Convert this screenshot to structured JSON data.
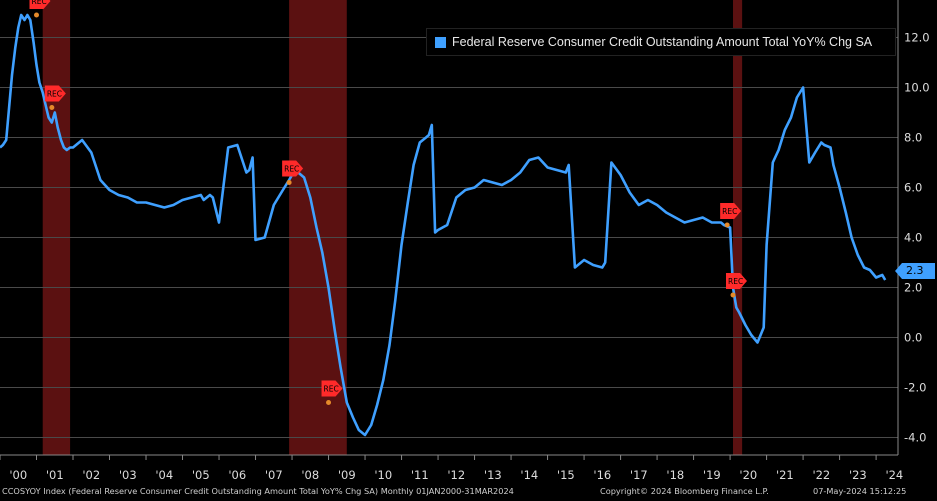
{
  "chart_data": {
    "type": "line",
    "series": [
      {
        "name": "Federal Reserve Consumer Credit Outstanding Amount Total YoY% Chg SA",
        "color": "#3fa0ff",
        "x": [
          2000.0,
          2000.08,
          2000.17,
          2000.25,
          2000.33,
          2000.42,
          2000.5,
          2000.58,
          2000.67,
          2000.75,
          2000.83,
          2000.92,
          2001.0,
          2001.08,
          2001.17,
          2001.25,
          2001.33,
          2001.42,
          2001.5,
          2001.58,
          2001.67,
          2001.75,
          2001.83,
          2001.92,
          2002.0,
          2002.25,
          2002.5,
          2002.75,
          2003.0,
          2003.25,
          2003.5,
          2003.75,
          2004.0,
          2004.25,
          2004.5,
          2004.75,
          2005.0,
          2005.25,
          2005.5,
          2005.58,
          2005.75,
          2005.83,
          2006.0,
          2006.25,
          2006.5,
          2006.75,
          2006.83,
          2006.92,
          2007.0,
          2007.25,
          2007.5,
          2007.75,
          2007.92,
          2008.0,
          2008.17,
          2008.33,
          2008.5,
          2008.67,
          2008.83,
          2009.0,
          2009.17,
          2009.33,
          2009.5,
          2009.67,
          2009.83,
          2010.0,
          2010.17,
          2010.33,
          2010.5,
          2010.67,
          2010.83,
          2011.0,
          2011.17,
          2011.33,
          2011.5,
          2011.67,
          2011.75,
          2011.83,
          2011.92,
          2012.0,
          2012.25,
          2012.5,
          2012.75,
          2013.0,
          2013.25,
          2013.5,
          2013.75,
          2014.0,
          2014.25,
          2014.5,
          2014.75,
          2015.0,
          2015.25,
          2015.5,
          2015.58,
          2015.75,
          2016.0,
          2016.25,
          2016.5,
          2016.58,
          2016.75,
          2017.0,
          2017.25,
          2017.5,
          2017.75,
          2018.0,
          2018.25,
          2018.5,
          2018.75,
          2019.0,
          2019.25,
          2019.5,
          2019.75,
          2019.83,
          2020.0,
          2020.08,
          2020.17,
          2020.25,
          2020.42,
          2020.58,
          2020.75,
          2020.92,
          2021.0,
          2021.17,
          2021.33,
          2021.5,
          2021.67,
          2021.83,
          2022.0,
          2022.17,
          2022.33,
          2022.5,
          2022.58,
          2022.75,
          2022.83,
          2023.0,
          2023.17,
          2023.33,
          2023.5,
          2023.67,
          2023.83,
          2024.0,
          2024.17,
          2024.25
        ],
        "values": [
          7.6,
          7.7,
          7.9,
          9.2,
          10.5,
          11.6,
          12.4,
          12.9,
          12.7,
          12.9,
          12.7,
          11.8,
          10.9,
          10.2,
          9.8,
          9.3,
          8.8,
          8.6,
          9.0,
          8.4,
          7.9,
          7.6,
          7.5,
          7.6,
          7.6,
          7.9,
          7.4,
          6.3,
          5.9,
          5.7,
          5.6,
          5.4,
          5.4,
          5.3,
          5.2,
          5.3,
          5.5,
          5.6,
          5.7,
          5.5,
          5.7,
          5.6,
          4.6,
          7.6,
          7.7,
          6.6,
          6.7,
          7.2,
          3.9,
          4.0,
          5.3,
          5.9,
          6.3,
          6.5,
          6.6,
          6.4,
          5.6,
          4.4,
          3.4,
          2.0,
          0.3,
          -1.2,
          -2.6,
          -3.2,
          -3.7,
          -3.9,
          -3.5,
          -2.7,
          -1.7,
          -0.3,
          1.5,
          3.7,
          5.4,
          6.9,
          7.8,
          8.0,
          8.1,
          8.5,
          4.2,
          4.3,
          4.5,
          5.6,
          5.9,
          6.0,
          6.3,
          6.2,
          6.1,
          6.3,
          6.6,
          7.1,
          7.2,
          6.8,
          6.7,
          6.6,
          6.9,
          2.8,
          3.1,
          2.9,
          2.8,
          3.0,
          7.0,
          6.5,
          5.8,
          5.3,
          5.5,
          5.3,
          5.0,
          4.8,
          4.6,
          4.7,
          4.8,
          4.6,
          4.6,
          4.5,
          4.4,
          2.0,
          1.2,
          1.0,
          0.5,
          0.1,
          -0.2,
          0.4,
          3.7,
          7.0,
          7.5,
          8.3,
          8.8,
          9.6,
          10.0,
          7.0,
          7.4,
          7.8,
          7.7,
          7.6,
          6.9,
          6.0,
          5.0,
          4.0,
          3.3,
          2.8,
          2.7,
          2.4,
          2.5,
          2.3
        ]
      }
    ],
    "x_ticks": [
      "'00",
      "'01",
      "'02",
      "'03",
      "'04",
      "'05",
      "'06",
      "'07",
      "'08",
      "'09",
      "'10",
      "'11",
      "'12",
      "'13",
      "'14",
      "'15",
      "'16",
      "'17",
      "'18",
      "'19",
      "'20",
      "'21",
      "'22",
      "'23",
      "'24"
    ],
    "y_ticks": [
      "12.0",
      "10.0",
      "8.0",
      "6.0",
      "4.0",
      "2.0",
      "0.0",
      "-2.0",
      "-4.0"
    ],
    "ylim": [
      -4.7,
      13.5
    ],
    "xlim": [
      2000.0,
      2024.6
    ],
    "recessions": [
      [
        2001.17,
        2001.92
      ],
      [
        2007.92,
        2009.5
      ],
      [
        2020.08,
        2020.33
      ]
    ],
    "rec_markers": [
      {
        "x": 2001.0,
        "y": 12.9,
        "label": "REC"
      },
      {
        "x": 2001.42,
        "y": 9.2,
        "label": "REC"
      },
      {
        "x": 2007.92,
        "y": 6.2,
        "label": "REC"
      },
      {
        "x": 2009.0,
        "y": -2.6,
        "label": "REC"
      },
      {
        "x": 2019.92,
        "y": 4.5,
        "label": "REC"
      },
      {
        "x": 2020.08,
        "y": 1.7,
        "label": "REC"
      }
    ],
    "last_value": "2.3",
    "grid": true,
    "legend": "top-right"
  },
  "legend_label": "Federal Reserve Consumer Credit Outstanding Amount Total YoY% Chg SA",
  "footer_left": "CCOSYOY Index (Federal Reserve Consumer Credit Outstanding Amount Total YoY% Chg SA)  Monthly 01JAN2000-31MAR2024",
  "footer_mid": "Copyright© 2024 Bloomberg Finance L.P.",
  "footer_right": "07-May-2024 15:12:25",
  "colors": {
    "line": "#3fa0ff",
    "recession": "#6b1414",
    "marker": "#ff2a2a"
  }
}
